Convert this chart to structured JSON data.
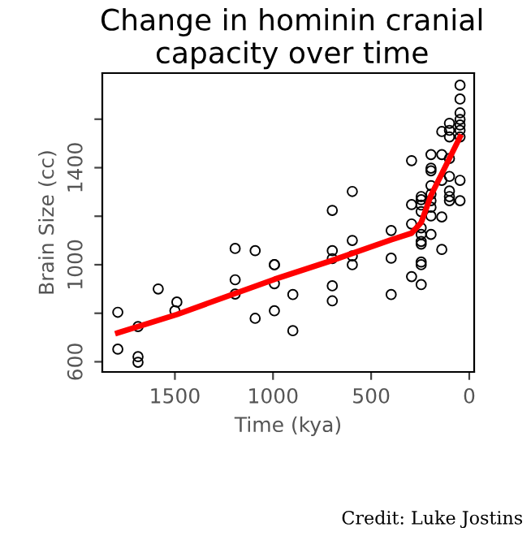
{
  "chart_data": {
    "type": "scatter",
    "title": "Change in hominin cranial capacity over time",
    "xlabel": "Time (kya)",
    "ylabel": "Brain Size (cc)",
    "annotations": [
      "Credit: Luke Jostins"
    ],
    "xlim": [
      1870,
      -25
    ],
    "ylim": [
      558,
      1790
    ],
    "xticks": [
      1500,
      1000,
      500,
      0
    ],
    "yticks": [
      600,
      {
        "value": 800,
        "label": null
      },
      1000,
      {
        "value": 1200,
        "label": null
      },
      1400,
      {
        "value": 1600,
        "label": null
      }
    ],
    "grid": false,
    "legend": false,
    "series": [
      {
        "marker": "circle",
        "color": "#000000",
        "x": [
          1791,
          1791,
          1688,
          1688,
          1688,
          1585,
          1490,
          1500,
          1193,
          1193,
          1193,
          1091,
          1091,
          993,
          993,
          993,
          993,
          899,
          899,
          698,
          698,
          698,
          698,
          698,
          596,
          596,
          596,
          596,
          398,
          398,
          398,
          294,
          294,
          294,
          294,
          245,
          245,
          245,
          245,
          245,
          245,
          245,
          245,
          245,
          245,
          245,
          195,
          195,
          195,
          195,
          195,
          195,
          195,
          195,
          195,
          140,
          140,
          140,
          140,
          140,
          101,
          101,
          101,
          101,
          101,
          101,
          101,
          101,
          47,
          47,
          47,
          47,
          47,
          47,
          47,
          47,
          47
        ],
        "values": [
          804,
          652,
          621,
          598,
          745,
          900,
          846,
          810,
          1067,
          938,
          879,
          1058,
          779,
          1000,
          1000,
          922,
          810,
          877,
          728,
          1224,
          1058,
          1025,
          913,
          851,
          1302,
          1100,
          1036,
          1000,
          1141,
          1027,
          877,
          1429,
          1248,
          1168,
          951,
          1281,
          1268,
          1246,
          1219,
          1152,
          1125,
          1096,
          1085,
          1011,
          1000,
          918,
          1454,
          1398,
          1387,
          1326,
          1291,
          1264,
          1237,
          1201,
          1125,
          1549,
          1454,
          1348,
          1197,
          1063,
          1583,
          1554,
          1527,
          1438,
          1364,
          1304,
          1281,
          1264,
          1740,
          1683,
          1626,
          1599,
          1576,
          1554,
          1527,
          1348,
          1264
        ]
      },
      {
        "type": "line",
        "color": "#ff0000",
        "line_style": "solid",
        "marker": "none",
        "x": [
          1791,
          1490,
          993,
          698,
          398,
          294,
          245,
          195,
          140,
          47
        ],
        "values": [
          719,
          795,
          940,
          1018,
          1103,
          1130,
          1174,
          1286,
          1375,
          1527
        ]
      }
    ]
  }
}
